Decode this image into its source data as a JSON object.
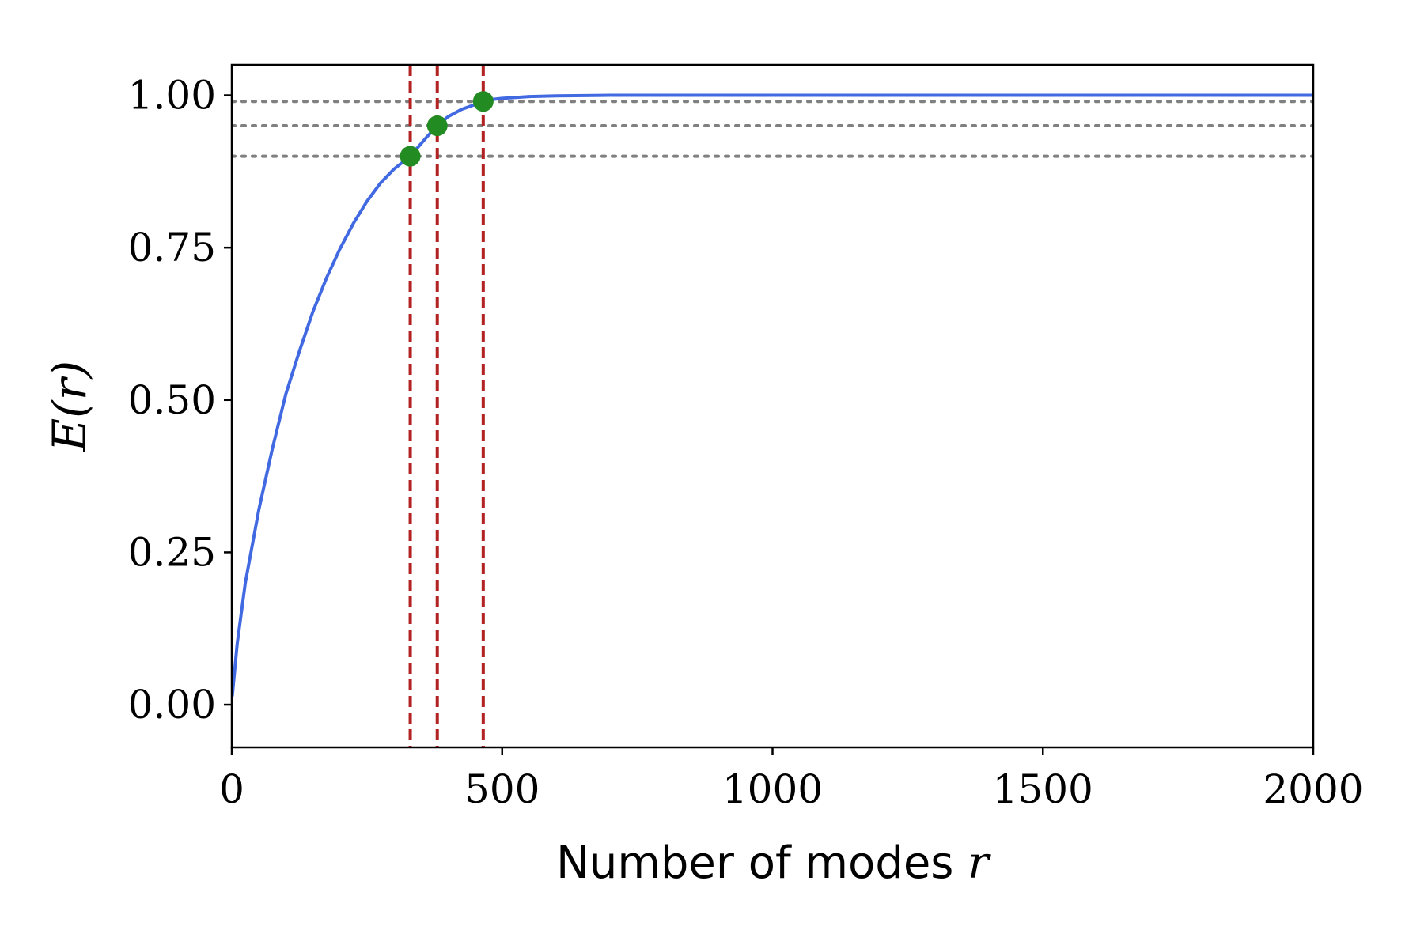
{
  "chart_data": {
    "type": "line",
    "xlabel_text": "Number of modes",
    "xlabel_var": "r",
    "ylabel": "E(r)",
    "xlim": [
      0,
      2000
    ],
    "ylim": [
      -0.07,
      1.05
    ],
    "x_ticks": [
      0,
      500,
      1000,
      1500,
      2000
    ],
    "x_tick_labels": [
      "0",
      "500",
      "1000",
      "1500",
      "2000"
    ],
    "y_ticks": [
      0.0,
      0.25,
      0.5,
      0.75,
      1.0
    ],
    "y_tick_labels": [
      "0.00",
      "0.25",
      "0.50",
      "0.75",
      "1.00"
    ],
    "grid": false,
    "series": [
      {
        "color": "#4169E1",
        "x": [
          1,
          10,
          25,
          50,
          75,
          100,
          125,
          150,
          175,
          200,
          225,
          250,
          275,
          300,
          330,
          360,
          380,
          400,
          425,
          450,
          465,
          480,
          500,
          550,
          600,
          700,
          800,
          1000,
          1200,
          1500,
          1800,
          2000
        ],
        "y": [
          0.015,
          0.1,
          0.2,
          0.32,
          0.42,
          0.51,
          0.58,
          0.645,
          0.7,
          0.748,
          0.79,
          0.826,
          0.856,
          0.879,
          0.9,
          0.931,
          0.95,
          0.965,
          0.977,
          0.985,
          0.99,
          0.993,
          0.995,
          0.998,
          0.999,
          1.0,
          1.0,
          1.0,
          1.0,
          1.0,
          1.0,
          1.0
        ]
      }
    ],
    "threshold_lines": {
      "color": "#808080",
      "style": "dotted",
      "y": [
        0.9,
        0.95,
        0.99
      ]
    },
    "cutoff_lines": {
      "color": "#B22222",
      "style": "dashed",
      "x": [
        330,
        380,
        465
      ]
    },
    "markers": {
      "color": "#228B22",
      "points": [
        {
          "x": 330,
          "y": 0.9
        },
        {
          "x": 380,
          "y": 0.95
        },
        {
          "x": 465,
          "y": 0.99
        }
      ]
    }
  }
}
